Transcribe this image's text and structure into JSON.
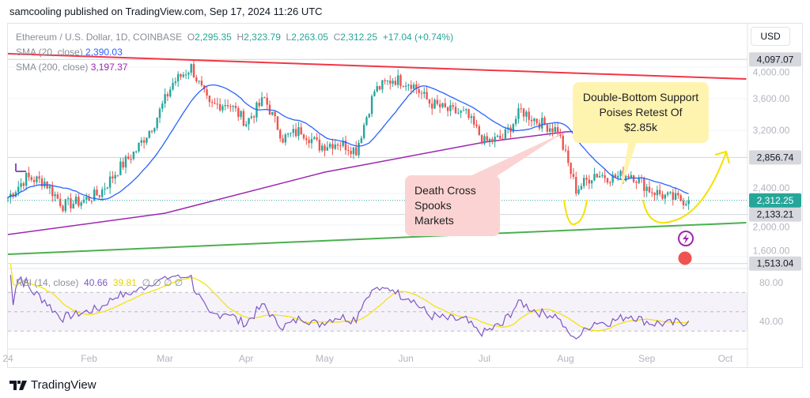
{
  "publisher_line": "samcooling published on TradingView.com, Sep 17, 2024 11:26 UTC",
  "legend": {
    "symbol": "Ethereum / U.S. Dollar, 1D, COINBASE",
    "o_label": "O",
    "o": "2,295.35",
    "h_label": "H",
    "h": "2,323.79",
    "l_label": "L",
    "l": "2,263.05",
    "c_label": "C",
    "c": "2,312.25",
    "change": "+17.04 (+0.74%)",
    "sma20_label": "SMA (20, close)",
    "sma20": "2,390.03",
    "sma200_label": "SMA (200, close)",
    "sma200": "3,197.37"
  },
  "rsi_legend": {
    "label": "RSI (14, close)",
    "value": "40.66",
    "ma": "39.81",
    "extra": "∅ ∅ ∅ ∅"
  },
  "currency": "USD",
  "brand": "TradingView",
  "callouts": {
    "death_cross": "Death Cross Spooks Markets",
    "double_bottom": "Double-Bottom Support Poises Retest Of $2.85k"
  },
  "colors": {
    "up": "#26a69a",
    "down": "#ef5350",
    "sma20": "#2962ff",
    "sma200": "#9c27b0",
    "rsi": "#7e57c2",
    "rsi_ma": "#f5e100",
    "resistance": "#f23645",
    "support": "#4caf50",
    "annotation": "#f5e100"
  },
  "chart_data": {
    "type": "candlestick",
    "title": "Ethereum / U.S. Dollar, 1D, COINBASE",
    "ylim": [
      1500,
      4200
    ],
    "y_ticks": [
      "4,000.00",
      "3,600.00",
      "3,200.00",
      "2,400.00",
      "2,000.00",
      "1,600.00"
    ],
    "y_tick_values": [
      4000,
      3600,
      3200,
      2400,
      2000,
      1600
    ],
    "price_labels": [
      {
        "value": 4097.07,
        "text": "4,097.07"
      },
      {
        "value": 2856.74,
        "text": "2,856.74"
      },
      {
        "value": 2133.21,
        "text": "2,133.21"
      },
      {
        "value": 1513.04,
        "text": "1,513.04"
      }
    ],
    "last_price": {
      "value": 2312.25,
      "text": "2,312.25"
    },
    "x_ticks": [
      {
        "day": 0,
        "text": "24"
      },
      {
        "day": 31,
        "text": "Feb"
      },
      {
        "day": 60,
        "text": "Mar"
      },
      {
        "day": 91,
        "text": "Apr"
      },
      {
        "day": 121,
        "text": "May"
      },
      {
        "day": 152,
        "text": "Jun"
      },
      {
        "day": 182,
        "text": "Jul"
      },
      {
        "day": 213,
        "text": "Aug"
      },
      {
        "day": 244,
        "text": "Sep"
      },
      {
        "day": 274,
        "text": "Oct"
      }
    ],
    "weekly_closes": [
      2350,
      2600,
      2550,
      2250,
      2300,
      2400,
      2700,
      2950,
      3300,
      3800,
      4000,
      3500,
      3550,
      3300,
      3600,
      3100,
      3200,
      3000,
      3050,
      2950,
      3700,
      3850,
      3800,
      3550,
      3450,
      3400,
      3050,
      3100,
      3450,
      3300,
      3200,
      2450,
      2650,
      2600,
      2650,
      2450,
      2350,
      2312
    ],
    "sma200_points": [
      [
        0,
        1880
      ],
      [
        60,
        2150
      ],
      [
        121,
        2670
      ],
      [
        182,
        3050
      ],
      [
        213,
        3180
      ],
      [
        244,
        3230
      ],
      [
        260,
        3197
      ]
    ],
    "trendlines": [
      {
        "name": "resistance",
        "from": [
          0,
          4170
        ],
        "to": [
          282,
          3850
        ]
      },
      {
        "name": "support",
        "from": [
          0,
          1630
        ],
        "to": [
          282,
          2030
        ]
      }
    ],
    "rsi": {
      "ylim": [
        20,
        90
      ],
      "bands": [
        70,
        50,
        30
      ],
      "y_ticks": [
        "80.00",
        "40.00"
      ],
      "y_tick_values": [
        80,
        40
      ]
    }
  }
}
